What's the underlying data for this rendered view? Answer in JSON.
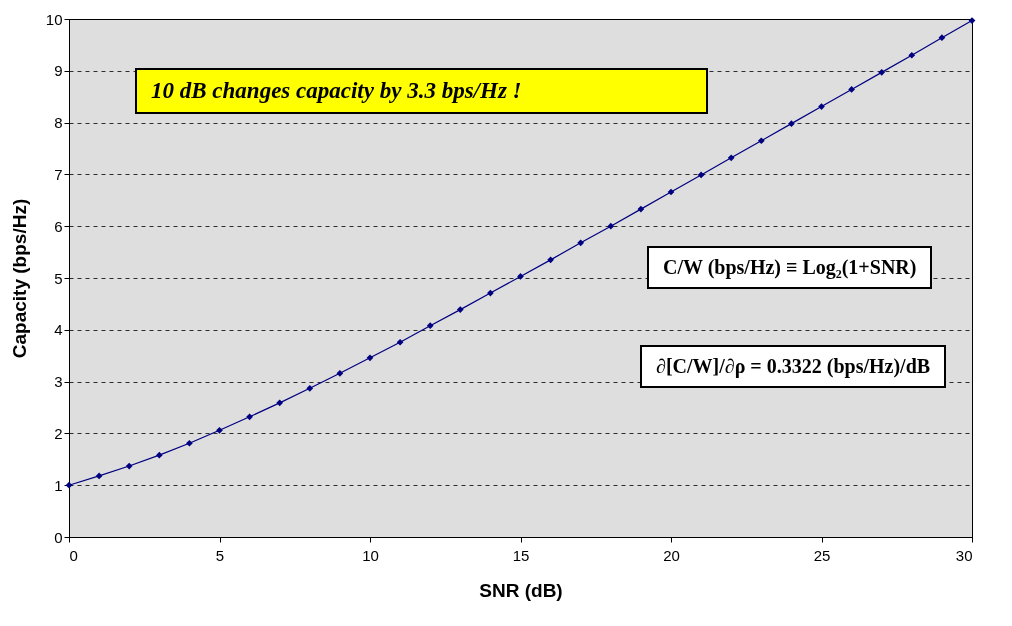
{
  "chart_data": {
    "type": "line",
    "xlabel": "SNR  (dB)",
    "ylabel": "Capacity  (bps/Hz)",
    "x": [
      0,
      1,
      2,
      3,
      4,
      5,
      6,
      7,
      8,
      9,
      10,
      11,
      12,
      13,
      14,
      15,
      16,
      17,
      18,
      19,
      20,
      21,
      22,
      23,
      24,
      25,
      26,
      27,
      28,
      29,
      30
    ],
    "series": [
      {
        "color": "#000080",
        "values": [
          1.0,
          1.18,
          1.37,
          1.58,
          1.81,
          2.06,
          2.32,
          2.59,
          2.87,
          3.16,
          3.46,
          3.76,
          4.08,
          4.39,
          4.71,
          5.03,
          5.35,
          5.68,
          6.0,
          6.33,
          6.66,
          6.99,
          7.32,
          7.65,
          7.98,
          8.31,
          8.64,
          8.97,
          9.3,
          9.64,
          9.97
        ]
      }
    ],
    "xlim": [
      0,
      30
    ],
    "xticks": [
      0,
      5,
      10,
      15,
      20,
      25,
      30
    ],
    "ylim": [
      0,
      10
    ],
    "yticks": [
      0,
      1,
      2,
      3,
      4,
      5,
      6,
      7,
      8,
      9,
      10
    ],
    "grid": "y",
    "marker": "diamond",
    "line_style": "solid",
    "legend": false,
    "annotations": [
      "10 dB changes capacity by 3.3 bps/Hz !",
      "C/W (bps/Hz) ≡ Log₂(1+SNR)",
      "∂[C/W]/∂ρ = 0.3322 (bps/Hz)/dB"
    ]
  }
}
